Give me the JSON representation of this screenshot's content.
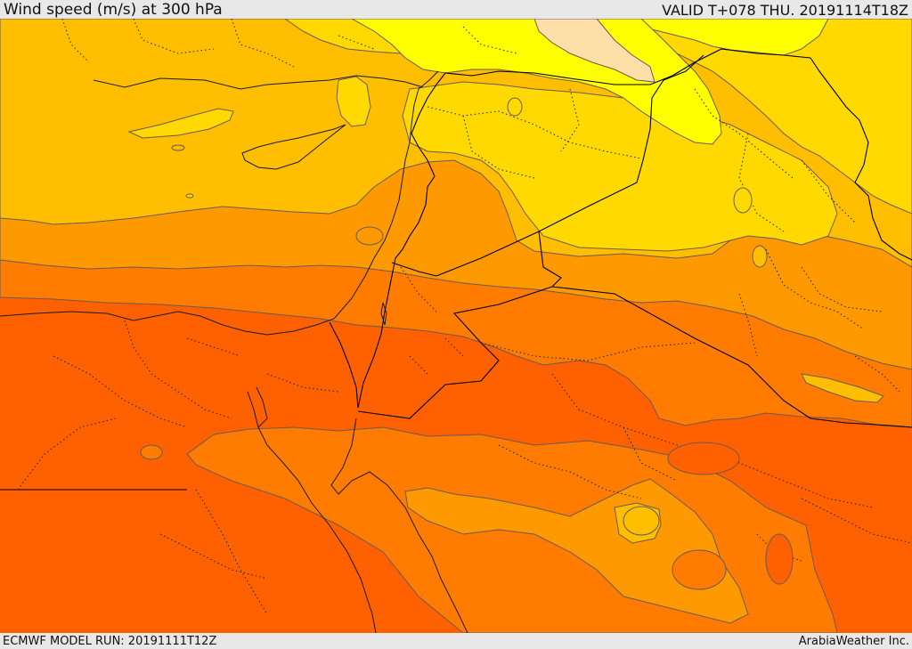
{
  "header": {
    "title": "Wind speed (m/s) at 300 hPa",
    "valid": "VALID T+078 THU. 20191114T18Z"
  },
  "footer": {
    "model_run": "ECMWF MODEL RUN: 20191111T12Z",
    "credit": "ArabiaWeather Inc."
  },
  "palette": {
    "band_lightest": "#ffdfa8",
    "band_yellow": "#ffff00",
    "band_light_orange": "#ffd900",
    "band_amber": "#ffbf00",
    "band_orange": "#ff9900",
    "band_deep_orange": "#ff7c00",
    "band_red_orange": "#ff6000",
    "border": "#000000",
    "contour": "#6b5a55"
  }
}
